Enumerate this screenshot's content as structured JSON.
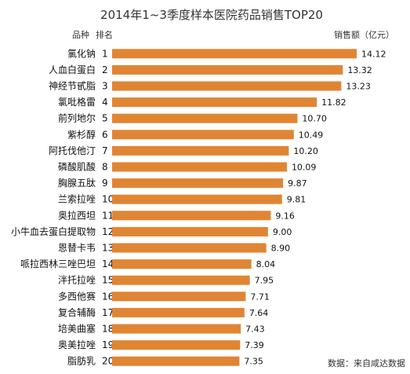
{
  "chart_data": {
    "type": "bar",
    "orientation": "horizontal",
    "title": "2014年1~3季度样本医院药品销售TOP20",
    "header_product": "品种",
    "header_rank": "排名",
    "value_label": "销售额（亿元）",
    "source": "数据：来自咸达数据",
    "bar_color": "#e08533",
    "categories": [
      "氯化钠",
      "人血白蛋白",
      "神经节甙脂",
      "氯吡格雷",
      "前列地尔",
      "紫杉醇",
      "阿托伐他汀",
      "磷酸肌酸",
      "胸腺五肽",
      "兰索拉唑",
      "奥拉西坦",
      "小牛血去蛋白提取物",
      "恩替卡韦",
      "哌拉西林三唑巴坦",
      "泮托拉唑",
      "多西他赛",
      "复合辅酶",
      "培美曲塞",
      "奥美拉唑",
      "脂肪乳"
    ],
    "ranks": [
      "1",
      "2",
      "3",
      "4",
      "5",
      "6",
      "7",
      "8",
      "9",
      "10",
      "11",
      "12",
      "13",
      "14",
      "15",
      "16",
      "17",
      "18",
      "19",
      "20"
    ],
    "values": [
      14.12,
      13.32,
      13.23,
      11.82,
      10.7,
      10.49,
      10.2,
      10.09,
      9.87,
      9.81,
      9.16,
      9.0,
      8.9,
      8.04,
      7.95,
      7.71,
      7.64,
      7.43,
      7.39,
      7.35
    ],
    "value_labels": [
      "14.12",
      "13.32",
      "13.23",
      "11.82",
      "10.70",
      "10.49",
      "10.20",
      "10.09",
      "9.87",
      "9.81",
      "9.16",
      "9.00",
      "8.90",
      "8.04",
      "7.95",
      "7.71",
      "7.64",
      "7.43",
      "7.39",
      "7.35"
    ],
    "xlim": [
      0,
      14.12
    ]
  }
}
